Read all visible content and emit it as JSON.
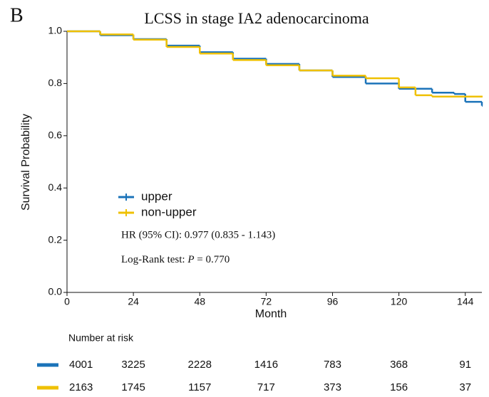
{
  "chart_data": {
    "type": "survival",
    "panel_label": "B",
    "title": "LCSS in stage IA2 adenocarcinoma",
    "x_label": "Month",
    "y_label": "Survival Probability",
    "xlim": [
      0,
      150
    ],
    "ylim": [
      0,
      1
    ],
    "xticks": [
      0,
      24,
      48,
      72,
      96,
      120,
      144
    ],
    "yticks": [
      {
        "value": 0,
        "label": "0.0"
      },
      0.2,
      0.4,
      0.6,
      0.8,
      {
        "value": 1,
        "label": "1.0"
      }
    ],
    "series": [
      {
        "name": "upper",
        "color": "#1b73b9",
        "x": [
          0,
          12,
          24,
          36,
          48,
          60,
          72,
          84,
          96,
          108,
          120,
          132,
          140,
          144,
          150
        ],
        "values": [
          1,
          0.985,
          0.97,
          0.945,
          0.92,
          0.895,
          0.875,
          0.85,
          0.825,
          0.8,
          0.78,
          0.765,
          0.76,
          0.73,
          0.715
        ]
      },
      {
        "name": "non-upper",
        "color": "#efc000",
        "x": [
          0,
          12,
          24,
          36,
          48,
          60,
          72,
          84,
          96,
          108,
          120,
          126,
          132,
          150
        ],
        "values": [
          1,
          0.988,
          0.968,
          0.94,
          0.915,
          0.89,
          0.87,
          0.85,
          0.83,
          0.82,
          0.785,
          0.755,
          0.75,
          0.75
        ]
      }
    ],
    "annotations": [
      "HR (95% CI): 0.977 (0.835 - 1.143)",
      "Log-Rank test: ",
      "P",
      " = 0.770"
    ],
    "risk_table": {
      "title": "Number at risk",
      "rows": [
        [
          4001,
          3225,
          2228,
          1416,
          783,
          368,
          91
        ],
        [
          2163,
          1745,
          1157,
          717,
          373,
          156,
          37
        ]
      ]
    }
  }
}
